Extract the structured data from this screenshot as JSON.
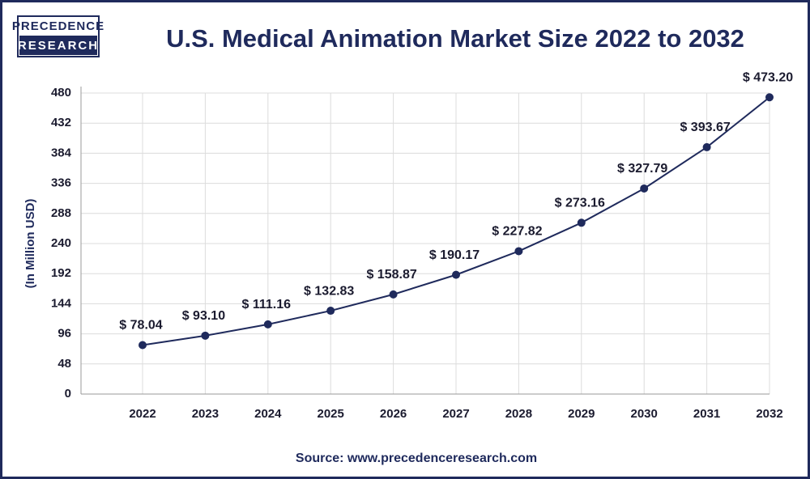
{
  "logo": {
    "top": "PRECEDENCE",
    "bottom": "RESEARCH"
  },
  "chart_data": {
    "type": "line",
    "title": "U.S. Medical Animation Market Size 2022 to 2032",
    "y_label": "(In Million USD)",
    "source": "Source: www.precedenceresearch.com",
    "categories": [
      "2022",
      "2023",
      "2024",
      "2025",
      "2026",
      "2027",
      "2028",
      "2029",
      "2030",
      "2031",
      "2032"
    ],
    "values": [
      78.04,
      93.1,
      111.16,
      132.83,
      158.87,
      190.17,
      227.82,
      273.16,
      327.79,
      393.67,
      473.2
    ],
    "value_labels": [
      "$ 78.04",
      "$ 93.10",
      "$ 111.16",
      "$ 132.83",
      "$ 158.87",
      "$ 190.17",
      "$ 227.82",
      "$ 273.16",
      "$ 327.79",
      "$ 393.67",
      "$ 473.20"
    ],
    "color": "#1f2a5c",
    "ylim": [
      0,
      480
    ],
    "yticks": [
      0,
      48,
      96,
      144,
      192,
      240,
      288,
      336,
      384,
      432,
      480
    ],
    "grid": true
  }
}
